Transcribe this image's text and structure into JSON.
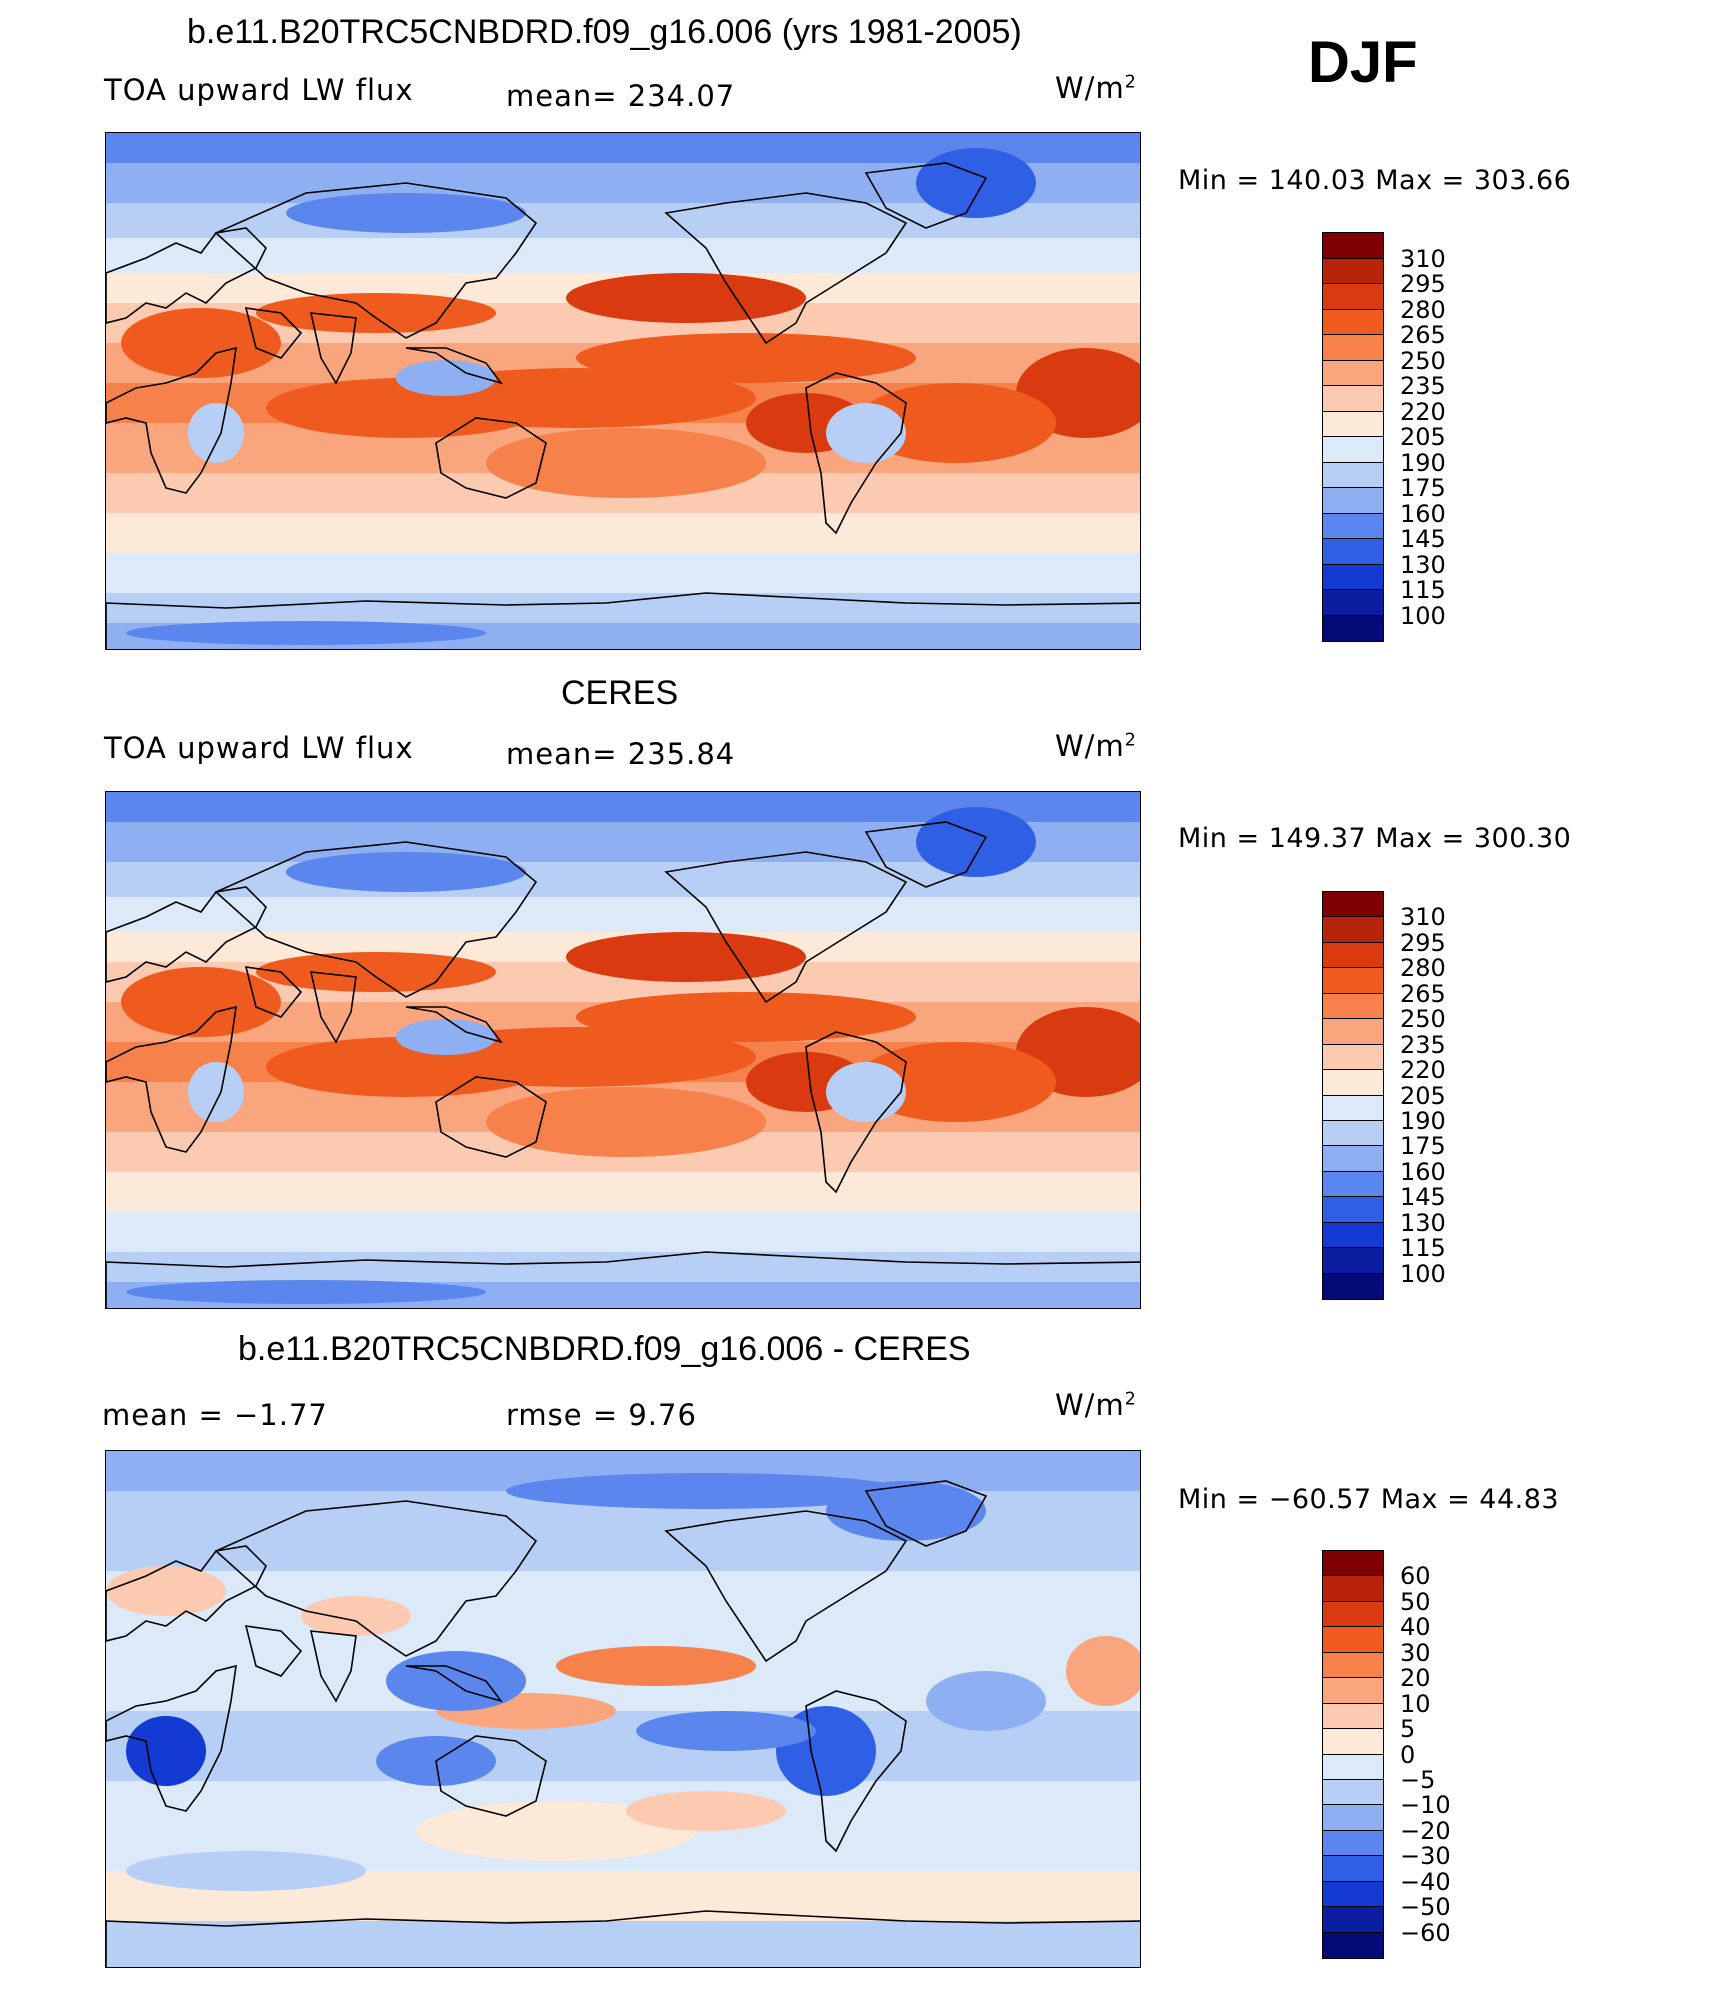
{
  "season": "DJF",
  "panels": [
    {
      "title": "b.e11.B20TRC5CNBDRD.f09_g16.006 (yrs 1981-2005)",
      "left": "TOA upward LW flux",
      "center": "mean=  234.07",
      "units": "W/m",
      "units_sup": "2",
      "minmax": "Min  =  140.03  Max  =  303.66",
      "kind": "abs",
      "colorbar_labels": [
        "310",
        "295",
        "280",
        "265",
        "250",
        "235",
        "220",
        "205",
        "190",
        "175",
        "160",
        "145",
        "130",
        "115",
        "100"
      ]
    },
    {
      "title": "CERES",
      "left": "TOA upward LW flux",
      "center": "mean=  235.84",
      "units": "W/m",
      "units_sup": "2",
      "minmax": "Min  =  149.37  Max  =  300.30",
      "kind": "abs2",
      "colorbar_labels": [
        "310",
        "295",
        "280",
        "265",
        "250",
        "235",
        "220",
        "205",
        "190",
        "175",
        "160",
        "145",
        "130",
        "115",
        "100"
      ]
    },
    {
      "title": "b.e11.B20TRC5CNBDRD.f09_g16.006 - CERES",
      "left": "mean  =    −1.77",
      "center": "rmse  =     9.76",
      "units": "W/m",
      "units_sup": "2",
      "minmax": "Min  =  −60.57  Max  =    44.83",
      "kind": "diff",
      "colorbar_labels": [
        "60",
        "50",
        "40",
        "30",
        "20",
        "10",
        "5",
        "0",
        "−5",
        "−10",
        "−20",
        "−30",
        "−40",
        "−50",
        "−60"
      ]
    }
  ],
  "colors": {
    "scale": [
      "#7f0000",
      "#b8240a",
      "#d93a0f",
      "#ef5a1f",
      "#f6814a",
      "#f9a67e",
      "#fccab0",
      "#fde9d8",
      "#dbe9f8",
      "#b8cff5",
      "#8eb0f2",
      "#5b86ee",
      "#2f5fe5",
      "#133bd4",
      "#0b1ea0",
      "#040a78"
    ]
  }
}
